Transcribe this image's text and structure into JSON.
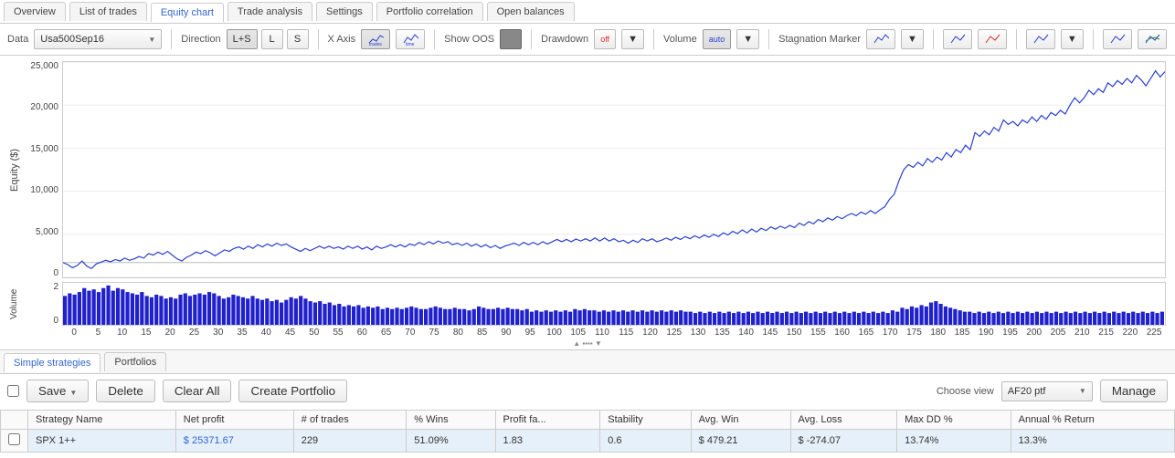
{
  "tabs": {
    "items": [
      "Overview",
      "List of trades",
      "Equity chart",
      "Trade analysis",
      "Settings",
      "Portfolio correlation",
      "Open balances"
    ],
    "active_index": 2
  },
  "toolbar": {
    "data_label": "Data",
    "data_value": "Usa500Sep16",
    "direction_label": "Direction",
    "direction_opts": [
      "L+S",
      "L",
      "S"
    ],
    "direction_active": 0,
    "xaxis_label": "X Axis",
    "xaxis_trades": "trades",
    "xaxis_time": "time",
    "showoos_label": "Show OOS",
    "drawdown_label": "Drawdown",
    "drawdown_badge": "off",
    "volume_label": "Volume",
    "volume_badge": "auto",
    "stagnation_label": "Stagnation Marker"
  },
  "equity_chart": {
    "type": "line",
    "y_title": "Equity ($)",
    "y_ticks": [
      "25,000",
      "20,000",
      "15,000",
      "10,000",
      "5,000",
      "0"
    ],
    "ylim": [
      -2000,
      27000
    ],
    "series_color": "#2a3fcf",
    "grid_color": "#eeeeee",
    "background_color": "#ffffff",
    "values": [
      0,
      -300,
      -700,
      -400,
      200,
      -500,
      -800,
      -200,
      50,
      300,
      100,
      400,
      200,
      600,
      300,
      500,
      800,
      600,
      1200,
      1000,
      1400,
      1100,
      1500,
      1000,
      500,
      200,
      700,
      1000,
      1400,
      1200,
      1600,
      1300,
      900,
      1300,
      1700,
      1500,
      1900,
      2100,
      1800,
      2200,
      1900,
      2400,
      2100,
      2500,
      2200,
      2600,
      2300,
      2500,
      2100,
      1800,
      1500,
      1900,
      1600,
      1900,
      2200,
      1900,
      2200,
      1900,
      2100,
      1800,
      2200,
      1900,
      2200,
      1800,
      2100,
      1700,
      2200,
      1900,
      2100,
      2400,
      2100,
      2400,
      2100,
      2500,
      2300,
      2700,
      2400,
      2800,
      2500,
      2900,
      2600,
      2800,
      2400,
      2600,
      2300,
      2600,
      2200,
      2500,
      2100,
      2400,
      2000,
      2300,
      1900,
      2200,
      2400,
      2600,
      2300,
      2700,
      2400,
      2700,
      2400,
      2800,
      2500,
      2800,
      3100,
      2800,
      3100,
      2800,
      3150,
      2900,
      3200,
      2900,
      3300,
      2900,
      3300,
      2900,
      3200,
      2800,
      3000,
      2600,
      3000,
      2700,
      3200,
      2900,
      3200,
      2800,
      3000,
      3300,
      3000,
      3400,
      3100,
      3500,
      3200,
      3600,
      3300,
      3700,
      3400,
      3800,
      3500,
      4000,
      3700,
      4200,
      3900,
      4400,
      4000,
      4500,
      4100,
      4600,
      4300,
      4800,
      4500,
      4900,
      4600,
      5000,
      4700,
      5300,
      5000,
      5500,
      5200,
      5800,
      5500,
      6000,
      5700,
      6200,
      5900,
      6300,
      6600,
      6300,
      6800,
      6500,
      7000,
      6600,
      7100,
      7500,
      8500,
      9200,
      11000,
      12500,
      13200,
      12800,
      13500,
      13000,
      14000,
      13500,
      14200,
      13800,
      14800,
      14200,
      15200,
      14800,
      15800,
      15200,
      17500,
      17000,
      17700,
      17200,
      18200,
      17700,
      19200,
      18600,
      19000,
      18400,
      19200,
      18800,
      19600,
      19000,
      19800,
      19300,
      20200,
      19800,
      20500,
      20000,
      21200,
      22200,
      21500,
      22200,
      23200,
      22600,
      23400,
      22900,
      24200,
      23700,
      24500,
      24000,
      24800,
      24200,
      25200,
      24600,
      23800,
      24800,
      25800,
      25000,
      25700
    ]
  },
  "volume_chart": {
    "type": "bar",
    "y_title": "Volume",
    "y_ticks": [
      "2",
      "0"
    ],
    "ylim": [
      0,
      3.2
    ],
    "bar_color": "#2020cc",
    "values": [
      2.2,
      2.4,
      2.3,
      2.5,
      2.8,
      2.6,
      2.7,
      2.5,
      2.8,
      3.0,
      2.6,
      2.8,
      2.7,
      2.5,
      2.4,
      2.3,
      2.5,
      2.2,
      2.1,
      2.3,
      2.2,
      2.0,
      2.1,
      2.0,
      2.3,
      2.4,
      2.2,
      2.3,
      2.4,
      2.3,
      2.5,
      2.4,
      2.2,
      2.0,
      2.1,
      2.3,
      2.2,
      2.1,
      2.0,
      2.2,
      2.0,
      1.9,
      2.0,
      1.8,
      1.9,
      1.7,
      1.9,
      2.1,
      2.0,
      2.2,
      2.0,
      1.8,
      1.7,
      1.8,
      1.6,
      1.7,
      1.5,
      1.6,
      1.4,
      1.5,
      1.4,
      1.5,
      1.3,
      1.4,
      1.3,
      1.4,
      1.2,
      1.3,
      1.2,
      1.3,
      1.2,
      1.3,
      1.4,
      1.3,
      1.2,
      1.2,
      1.3,
      1.4,
      1.3,
      1.2,
      1.2,
      1.3,
      1.2,
      1.2,
      1.1,
      1.2,
      1.4,
      1.3,
      1.2,
      1.2,
      1.3,
      1.2,
      1.3,
      1.2,
      1.2,
      1.1,
      1.2,
      1.0,
      1.1,
      1.0,
      1.1,
      1.0,
      1.1,
      1.0,
      1.1,
      1.0,
      1.2,
      1.1,
      1.2,
      1.1,
      1.1,
      1.0,
      1.1,
      1.0,
      1.1,
      1.0,
      1.1,
      1.0,
      1.1,
      1.0,
      1.1,
      1.0,
      1.1,
      1.0,
      1.1,
      1.0,
      1.1,
      1.0,
      1.1,
      1.0,
      1.0,
      0.9,
      1.0,
      0.9,
      1.0,
      0.9,
      1.0,
      0.9,
      1.0,
      0.9,
      1.0,
      0.9,
      1.0,
      0.9,
      1.0,
      0.9,
      1.0,
      0.9,
      1.0,
      0.9,
      1.0,
      0.9,
      1.0,
      0.9,
      1.0,
      0.9,
      1.0,
      0.9,
      1.0,
      0.9,
      1.0,
      0.9,
      1.0,
      0.9,
      1.0,
      0.9,
      1.0,
      0.9,
      1.0,
      0.9,
      1.0,
      0.9,
      1.1,
      1.0,
      1.3,
      1.2,
      1.4,
      1.3,
      1.5,
      1.4,
      1.7,
      1.8,
      1.6,
      1.4,
      1.3,
      1.2,
      1.1,
      1.0,
      1.0,
      0.9,
      1.0,
      0.9,
      1.0,
      0.9,
      1.0,
      0.9,
      1.0,
      0.9,
      1.0,
      0.9,
      1.0,
      0.9,
      1.0,
      0.9,
      1.0,
      0.9,
      1.0,
      0.9,
      1.0,
      0.9,
      1.0,
      0.9,
      1.0,
      0.9,
      1.0,
      0.9,
      1.0,
      0.9,
      1.0,
      0.9,
      1.0,
      0.9,
      1.0,
      0.9,
      1.0,
      0.9,
      1.0,
      0.9,
      1.0
    ]
  },
  "x_axis": {
    "ticks": [
      "0",
      "5",
      "10",
      "15",
      "20",
      "25",
      "30",
      "35",
      "40",
      "45",
      "50",
      "55",
      "60",
      "65",
      "70",
      "75",
      "80",
      "85",
      "90",
      "95",
      "100",
      "105",
      "110",
      "115",
      "120",
      "125",
      "130",
      "135",
      "140",
      "145",
      "150",
      "155",
      "160",
      "165",
      "170",
      "175",
      "180",
      "185",
      "190",
      "195",
      "200",
      "205",
      "210",
      "215",
      "220",
      "225"
    ]
  },
  "sub_tabs": {
    "items": [
      "Simple strategies",
      "Portfolios"
    ],
    "active_index": 0
  },
  "strat_bar": {
    "save": "Save",
    "delete": "Delete",
    "clear": "Clear All",
    "create": "Create Portfolio",
    "choose_view_label": "Choose view",
    "choose_view_value": "AF20 ptf",
    "manage": "Manage"
  },
  "table": {
    "columns": [
      "",
      "Strategy Name",
      "Net profit",
      "# of trades",
      "% Wins",
      "Profit fa...",
      "Stability",
      "Avg. Win",
      "Avg. Loss",
      "Max DD %",
      "Annual % Return"
    ],
    "row": {
      "name": "SPX 1++",
      "net_profit": "$ 25371.67",
      "trades": "229",
      "wins": "51.09%",
      "pf": "1.83",
      "stability": "0.6",
      "avg_win": "$ 479.21",
      "avg_loss": "$ -274.07",
      "maxdd": "13.74%",
      "annual": "13.3%"
    }
  }
}
